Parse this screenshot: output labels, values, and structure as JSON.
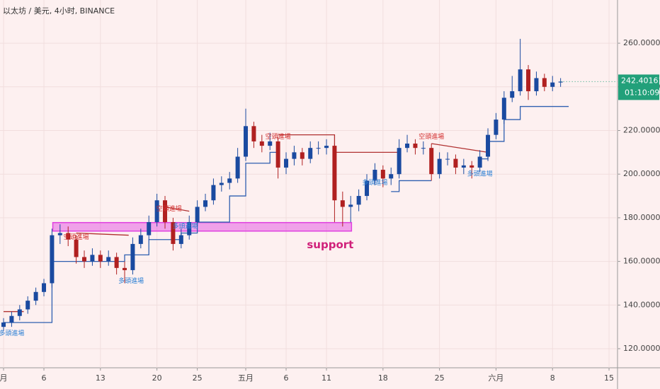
{
  "chart_data": {
    "type": "candlestick",
    "title": "以太坊 / 美元, 4小时, BINANCE",
    "ohlc": [
      [
        130,
        134,
        128,
        132
      ],
      [
        132,
        137,
        130,
        135
      ],
      [
        135,
        140,
        133,
        138
      ],
      [
        138,
        144,
        136,
        142
      ],
      [
        142,
        148,
        140,
        146
      ],
      [
        146,
        152,
        144,
        150
      ],
      [
        150,
        175,
        148,
        172
      ],
      [
        172,
        177,
        168,
        173
      ],
      [
        173,
        176,
        167,
        170
      ],
      [
        170,
        172,
        159,
        162
      ],
      [
        162,
        165,
        157,
        160
      ],
      [
        160,
        166,
        158,
        163
      ],
      [
        163,
        165,
        157,
        160
      ],
      [
        160,
        165,
        158,
        162
      ],
      [
        162,
        164,
        154,
        157
      ],
      [
        157,
        160,
        150,
        156
      ],
      [
        156,
        171,
        154,
        168
      ],
      [
        168,
        175,
        166,
        172
      ],
      [
        172,
        181,
        170,
        178
      ],
      [
        178,
        191,
        176,
        188
      ],
      [
        188,
        190,
        175,
        178
      ],
      [
        178,
        180,
        165,
        168
      ],
      [
        168,
        175,
        166,
        172
      ],
      [
        172,
        181,
        170,
        178
      ],
      [
        178,
        188,
        176,
        185
      ],
      [
        185,
        191,
        183,
        188
      ],
      [
        188,
        198,
        186,
        195
      ],
      [
        195,
        199,
        192,
        196
      ],
      [
        196,
        201,
        193,
        198
      ],
      [
        198,
        212,
        196,
        208
      ],
      [
        208,
        230,
        206,
        222
      ],
      [
        222,
        224,
        212,
        215
      ],
      [
        215,
        218,
        210,
        213
      ],
      [
        213,
        219,
        211,
        215
      ],
      [
        215,
        217,
        198,
        203
      ],
      [
        203,
        210,
        200,
        207
      ],
      [
        207,
        213,
        204,
        210
      ],
      [
        210,
        212,
        204,
        207
      ],
      [
        207,
        215,
        205,
        212
      ],
      [
        212,
        215,
        209,
        212
      ],
      [
        212,
        216,
        209,
        213
      ],
      [
        213,
        214,
        178,
        188
      ],
      [
        188,
        192,
        176,
        185
      ],
      [
        185,
        190,
        178,
        186
      ],
      [
        186,
        193,
        183,
        190
      ],
      [
        190,
        200,
        188,
        197
      ],
      [
        197,
        205,
        195,
        202
      ],
      [
        202,
        204,
        194,
        198
      ],
      [
        198,
        203,
        195,
        200
      ],
      [
        200,
        216,
        198,
        212
      ],
      [
        212,
        218,
        210,
        214
      ],
      [
        214,
        216,
        209,
        212
      ],
      [
        212,
        215,
        209,
        212
      ],
      [
        212,
        214,
        197,
        200
      ],
      [
        200,
        210,
        198,
        207
      ],
      [
        207,
        210,
        204,
        207
      ],
      [
        207,
        209,
        200,
        203
      ],
      [
        203,
        207,
        200,
        204
      ],
      [
        204,
        206,
        198,
        203
      ],
      [
        203,
        211,
        201,
        208
      ],
      [
        208,
        221,
        206,
        218
      ],
      [
        218,
        228,
        216,
        225
      ],
      [
        225,
        238,
        223,
        235
      ],
      [
        235,
        245,
        233,
        238
      ],
      [
        238,
        262,
        236,
        248
      ],
      [
        248,
        250,
        234,
        238
      ],
      [
        238,
        247,
        236,
        244
      ],
      [
        244,
        246,
        238,
        240
      ],
      [
        240,
        245,
        238,
        242
      ],
      [
        242,
        244,
        240,
        242.4
      ]
    ],
    "up_color": "#1a4aa0",
    "down_color": "#b02020",
    "lines": [
      {
        "color": "#2f5fb0",
        "x": [
          0,
          6,
          6,
          15,
          15,
          18,
          18,
          22,
          22,
          24,
          24,
          28,
          28,
          30,
          30,
          33,
          33,
          34,
          null,
          48,
          49,
          49,
          53,
          null,
          59,
          60,
          60,
          62,
          62,
          64,
          64,
          70
        ],
        "values": [
          132,
          132,
          160,
          160,
          163,
          163,
          170,
          170,
          173,
          173,
          178,
          178,
          190,
          190,
          205,
          205,
          210,
          210,
          null,
          192,
          192,
          197,
          197,
          null,
          207,
          207,
          215,
          215,
          225,
          225,
          231,
          231
        ]
      },
      {
        "color": "#b03030",
        "x": [
          0,
          2.5,
          null,
          9,
          15.5,
          null,
          20,
          23,
          null,
          34,
          41,
          41,
          49,
          null,
          53,
          60
        ],
        "values": [
          137,
          137,
          null,
          173,
          172,
          null,
          185,
          183,
          null,
          218,
          218,
          210,
          210,
          null,
          214,
          210
        ]
      }
    ],
    "support_zone": {
      "x": [
        6.1,
        43.1
      ],
      "y": [
        173.9,
        177.8
      ],
      "label": "support",
      "color": "#e040e0"
    },
    "annotations": [
      {
        "text": "多頭進場",
        "x": 1,
        "y": 127,
        "color": "#2a7fd4"
      },
      {
        "text": "多頭進場",
        "x": 15.8,
        "y": 151,
        "color": "#2a7fd4"
      },
      {
        "text": "多頭進場",
        "x": 22.5,
        "y": 176,
        "color": "#2a7fd4"
      },
      {
        "text": "多頭進場",
        "x": 46,
        "y": 196,
        "color": "#2a7fd4"
      },
      {
        "text": "多頭進場",
        "x": 59,
        "y": 200,
        "color": "#2a7fd4"
      },
      {
        "text": "空頭進場",
        "x": 9,
        "y": 171,
        "color": "#d32f2f"
      },
      {
        "text": "空頭進場",
        "x": 20.5,
        "y": 184,
        "color": "#d32f2f"
      },
      {
        "text": "空頭進場",
        "x": 34,
        "y": 217,
        "color": "#d32f2f"
      },
      {
        "text": "空頭進場",
        "x": 53,
        "y": 217,
        "color": "#d32f2f"
      }
    ],
    "xlim": [
      -0.44,
      76.05
    ],
    "xticks": [
      {
        "value": 0,
        "label": "月"
      },
      {
        "value": 5,
        "label": "6"
      },
      {
        "value": 12,
        "label": "13"
      },
      {
        "value": 19,
        "label": "20"
      },
      {
        "value": 24,
        "label": "25"
      },
      {
        "value": 30,
        "label": "五月"
      },
      {
        "value": 35,
        "label": "6"
      },
      {
        "value": 40,
        "label": "11"
      },
      {
        "value": 47,
        "label": "18"
      },
      {
        "value": 54,
        "label": "25"
      },
      {
        "value": 61,
        "label": "六月"
      },
      {
        "value": 68,
        "label": "8"
      },
      {
        "value": 75,
        "label": "15"
      }
    ],
    "ylim": [
      111.25,
      279.8
    ],
    "yticks": [
      {
        "value": 120,
        "label": "120.000000"
      },
      {
        "value": 140,
        "label": "140.000000"
      },
      {
        "value": 160,
        "label": "160.000000"
      },
      {
        "value": 180,
        "label": "180.000000"
      },
      {
        "value": 200,
        "label": "200.000000"
      },
      {
        "value": 220,
        "label": "220.000000"
      },
      {
        "value": 240,
        "label": "240.000000"
      },
      {
        "value": 260,
        "label": "260.000000"
      }
    ],
    "last_price": {
      "value": 242.40161,
      "label": "242.401610",
      "countdown": "01:10:09",
      "color": "#22a07a"
    },
    "grid": true
  }
}
